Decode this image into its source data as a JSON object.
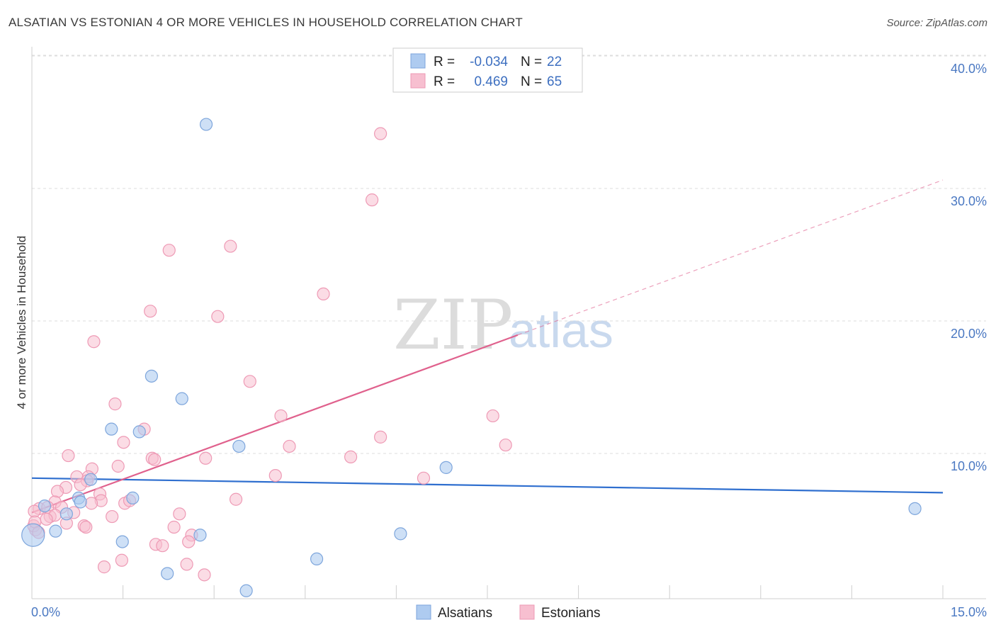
{
  "title": "ALSATIAN VS ESTONIAN 4 OR MORE VEHICLES IN HOUSEHOLD CORRELATION CHART",
  "source": "Source: ZipAtlas.com",
  "watermark": {
    "zip": "ZIP",
    "atlas": "atlas"
  },
  "colors": {
    "blue_fill": "#aecbf0",
    "blue_stroke": "#7ea6dc",
    "blue_line": "#2f6fcf",
    "pink_fill": "#f7bfd0",
    "pink_stroke": "#ee9ab5",
    "pink_line": "#e0618d",
    "grid": "#dddddd",
    "tick_label": "#4a78c2"
  },
  "legend": {
    "rows": [
      {
        "r_label": "R =",
        "r_value": "-0.034",
        "n_label": "N =",
        "n_value": "22"
      },
      {
        "r_label": "R =",
        "r_value": "0.469",
        "n_label": "N =",
        "n_value": "65"
      }
    ]
  },
  "chart_data": {
    "type": "scatter",
    "title": "ALSATIAN VS ESTONIAN 4 OR MORE VEHICLES IN HOUSEHOLD CORRELATION CHART",
    "xlabel": "",
    "ylabel": "4 or more Vehicles in Household",
    "xlim": [
      0,
      15
    ],
    "ylim": [
      0,
      40
    ],
    "x_tick_labels": [
      "0.0%",
      "15.0%"
    ],
    "y_ticks": [
      10,
      20,
      30,
      40
    ],
    "y_tick_labels": [
      "10.0%",
      "20.0%",
      "30.0%",
      "40.0%"
    ],
    "grid": true,
    "legend_position": "top-center",
    "series": [
      {
        "name": "Alsatians",
        "color": "#aecbf0",
        "r": -0.034,
        "n": 22,
        "points": [
          [
            2.87,
            35.8
          ],
          [
            1.97,
            16.8
          ],
          [
            2.47,
            15.1
          ],
          [
            1.31,
            12.8
          ],
          [
            1.77,
            12.6
          ],
          [
            3.41,
            11.5
          ],
          [
            6.82,
            9.9
          ],
          [
            0.97,
            9.0
          ],
          [
            0.77,
            7.6
          ],
          [
            1.66,
            7.6
          ],
          [
            0.8,
            7.3
          ],
          [
            0.21,
            7.0
          ],
          [
            0.57,
            6.4
          ],
          [
            0.39,
            5.1
          ],
          [
            2.77,
            4.8
          ],
          [
            6.07,
            4.9
          ],
          [
            1.49,
            4.3
          ],
          [
            4.69,
            3.0
          ],
          [
            2.23,
            1.9
          ],
          [
            3.53,
            0.6
          ],
          [
            14.54,
            6.8
          ],
          [
            0.02,
            4.8
          ]
        ],
        "trend": {
          "x": [
            0.0,
            15.0
          ],
          "y": [
            9.1,
            8.0
          ],
          "style": "solid"
        }
      },
      {
        "name": "Estonians",
        "color": "#f7bfd0",
        "r": 0.469,
        "n": 65,
        "points": [
          [
            5.74,
            35.1
          ],
          [
            5.6,
            30.1
          ],
          [
            2.26,
            26.3
          ],
          [
            3.27,
            26.6
          ],
          [
            4.8,
            23.0
          ],
          [
            1.95,
            21.7
          ],
          [
            3.06,
            21.3
          ],
          [
            1.02,
            19.4
          ],
          [
            3.59,
            16.4
          ],
          [
            1.37,
            14.7
          ],
          [
            4.1,
            13.8
          ],
          [
            7.59,
            13.8
          ],
          [
            1.85,
            12.8
          ],
          [
            5.74,
            12.2
          ],
          [
            1.51,
            11.8
          ],
          [
            4.24,
            11.5
          ],
          [
            7.8,
            11.6
          ],
          [
            0.6,
            10.8
          ],
          [
            2.86,
            10.6
          ],
          [
            5.25,
            10.7
          ],
          [
            1.98,
            10.6
          ],
          [
            2.02,
            10.5
          ],
          [
            1.42,
            10.0
          ],
          [
            0.99,
            9.8
          ],
          [
            0.93,
            9.2
          ],
          [
            0.74,
            9.2
          ],
          [
            4.01,
            9.3
          ],
          [
            6.45,
            9.1
          ],
          [
            0.91,
            8.9
          ],
          [
            0.8,
            8.6
          ],
          [
            0.56,
            8.4
          ],
          [
            0.42,
            8.1
          ],
          [
            1.12,
            7.9
          ],
          [
            1.14,
            7.4
          ],
          [
            0.98,
            7.2
          ],
          [
            1.53,
            7.2
          ],
          [
            1.61,
            7.4
          ],
          [
            3.36,
            7.5
          ],
          [
            0.38,
            7.3
          ],
          [
            0.12,
            6.8
          ],
          [
            0.26,
            6.9
          ],
          [
            0.49,
            6.9
          ],
          [
            0.69,
            6.5
          ],
          [
            0.04,
            6.6
          ],
          [
            0.3,
            6.2
          ],
          [
            0.38,
            6.3
          ],
          [
            0.24,
            6.0
          ],
          [
            1.32,
            6.2
          ],
          [
            2.43,
            6.4
          ],
          [
            0.57,
            5.7
          ],
          [
            0.86,
            5.5
          ],
          [
            0.89,
            5.4
          ],
          [
            2.34,
            5.4
          ],
          [
            0.06,
            5.2
          ],
          [
            2.63,
            4.8
          ],
          [
            2.58,
            4.3
          ],
          [
            2.04,
            4.1
          ],
          [
            2.15,
            4.0
          ],
          [
            1.48,
            2.9
          ],
          [
            2.55,
            2.6
          ],
          [
            1.19,
            2.4
          ],
          [
            2.84,
            1.8
          ],
          [
            0.03,
            5.5
          ],
          [
            0.05,
            5.8
          ],
          [
            0.11,
            5.0
          ]
        ],
        "trend": {
          "x": [
            0.0,
            8.0
          ],
          "y": [
            6.5,
            19.9
          ],
          "style": "solid"
        },
        "trend_extension": {
          "x": [
            8.0,
            15.0
          ],
          "y": [
            19.9,
            31.6
          ],
          "style": "dashed"
        }
      }
    ]
  },
  "bottom_legend": [
    "Alsatians",
    "Estonians"
  ]
}
